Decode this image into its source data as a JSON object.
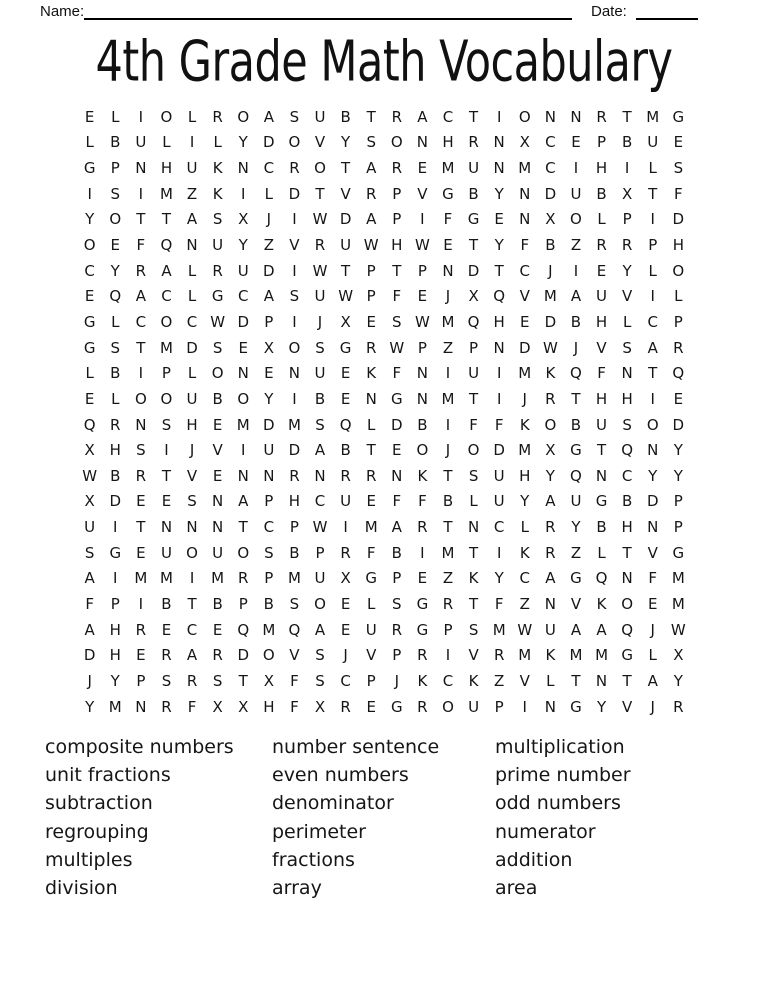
{
  "header": {
    "name_label": "Name:",
    "date_label": "Date:"
  },
  "title": "4th Grade Math Vocabulary",
  "puzzle": {
    "rows": 24,
    "cols": 24,
    "grid": [
      "ELIOLROASUBTRACTIONNRTMG",
      "LBULILYDOVYSONHRNXCEPBUE",
      "GPNHUKNCROTAREMUNMCIHILS",
      "ISIMZKILDTVRPVGBYNDUBXTF",
      "YOTTASXJIWDAPIFGENXOLPID",
      "OEFQNUYZVRUWHWETYFBZRRPH",
      "CYRALRUDIWTPTPNDTCJIEYLO",
      "EQACLGCASUWPFEJXQVMAUVIL",
      "GLCOCWDPIJXESWMQHEDBHLCP",
      "GSTMDSEXOSGRWPZPNDWJVSAR",
      "LBIPLONENUEKFNIUIMKQFNTQ",
      "ELOOUBOYIBENGNMTIJRTHHIE",
      "QRNSHEMDMSQLDBIFFKOBUSOD",
      "XHSIJVIUDABTEOJODMXGTQNY",
      "WBRTVENNRNRRNKTSUHYQNCYY",
      "XDEESNAPHCUEFFBLUYAUGBDP",
      "UITNNNTCPWIMARTNCLRYBHNP",
      "SGEUOUOSBPRFBIMTIKRZLTVG",
      "AIMMIMRPMUXGPEZKYCAGQNFM",
      "FPIBTBPBSOELSGRTFZNVKOEM",
      "AHRECEQMQAEURGPSMWUAAQJW",
      "DHERARDOVSJVPRIVRMKMMGLX",
      "JYPSRSTXFSCPJKCKZVLTNTAY",
      "YMNRFXXHFXREGROUPINGYVJR"
    ]
  },
  "word_list": {
    "columns": [
      [
        "composite numbers",
        "unit fractions",
        "subtraction",
        "regrouping",
        "multiples",
        "division"
      ],
      [
        "number sentence",
        "even numbers",
        "denominator",
        "perimeter",
        "fractions",
        "array"
      ],
      [
        "multiplication",
        "prime number",
        "odd numbers",
        "numerator",
        "addition",
        "area"
      ]
    ]
  },
  "colors": {
    "ink": "#161616",
    "line": "#000000",
    "background": "#ffffff"
  }
}
